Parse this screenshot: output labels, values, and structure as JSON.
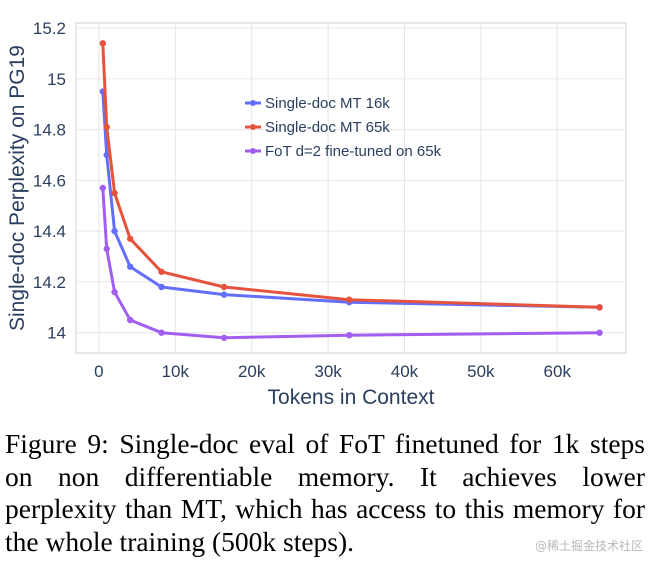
{
  "chart_data": {
    "type": "line",
    "title": "",
    "xlabel": "Tokens in Context",
    "ylabel": "Single-doc Perplexity on PG19",
    "xlim": [
      -3000,
      69000
    ],
    "ylim": [
      13.92,
      15.22
    ],
    "xticks": [
      0,
      10000,
      20000,
      30000,
      40000,
      50000,
      60000
    ],
    "xtick_labels": [
      "0",
      "10k",
      "20k",
      "30k",
      "40k",
      "50k",
      "60k"
    ],
    "yticks": [
      14,
      14.2,
      14.4,
      14.6,
      14.8,
      15,
      15.2
    ],
    "ytick_labels": [
      "14",
      "14.2",
      "14.4",
      "14.6",
      "14.8",
      "15",
      "15.2"
    ],
    "grid": true,
    "legend_position": "upper-center",
    "x": [
      512,
      1024,
      2048,
      4096,
      8192,
      16384,
      32768,
      65536
    ],
    "series": [
      {
        "name": "Single-doc MT 16k",
        "color": "#636efa",
        "values": [
          14.95,
          14.7,
          14.4,
          14.26,
          14.18,
          14.15,
          14.12,
          14.1
        ]
      },
      {
        "name": "Single-doc MT 65k",
        "color": "#e5533d",
        "values": [
          15.14,
          14.81,
          14.55,
          14.37,
          14.24,
          14.18,
          14.13,
          14.1
        ]
      },
      {
        "name": "FoT d=2 fine-tuned on 65k",
        "color": "#a25ef0",
        "values": [
          14.57,
          14.33,
          14.16,
          14.05,
          14.0,
          13.98,
          13.99,
          14.0
        ]
      }
    ]
  },
  "caption": "Figure 9:  Single-doc eval of FoT finetuned for 1k steps on non differentiable memory. It achieves lower perplexity than MT, which has access to this memory for the whole training (500k steps).",
  "watermark": "@稀土掘金技术社区"
}
